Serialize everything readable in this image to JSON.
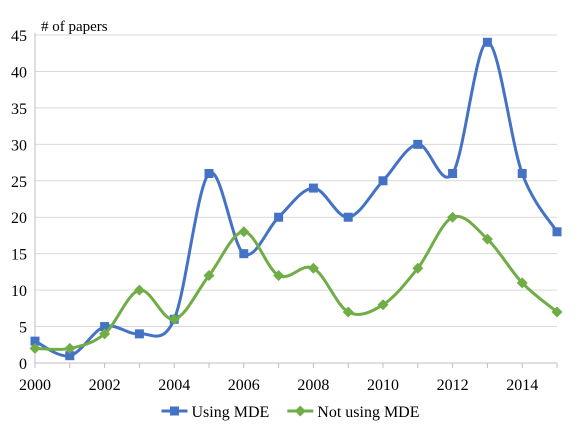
{
  "chart_data": {
    "type": "line",
    "title": "",
    "xlabel": "",
    "ylabel": "# of papers",
    "x": [
      2000,
      2001,
      2002,
      2003,
      2004,
      2005,
      2006,
      2007,
      2008,
      2009,
      2010,
      2011,
      2012,
      2013,
      2014,
      2015
    ],
    "xlim": [
      2000,
      2015
    ],
    "ylim": [
      0,
      45
    ],
    "xticks": [
      2000,
      2002,
      2004,
      2006,
      2008,
      2010,
      2012,
      2014
    ],
    "yticks": [
      0,
      5,
      10,
      15,
      20,
      25,
      30,
      35,
      40,
      45
    ],
    "smooth": true,
    "grid": "horizontal",
    "legend_position": "bottom",
    "series": [
      {
        "name": "Using MDE",
        "color": "#4472C4",
        "marker": "square",
        "values": [
          3,
          1,
          5,
          4,
          6,
          26,
          15,
          20,
          24,
          20,
          25,
          30,
          26,
          44,
          26,
          18
        ]
      },
      {
        "name": "Not using MDE",
        "color": "#70AD47",
        "marker": "diamond",
        "values": [
          2,
          2,
          4,
          10,
          6,
          12,
          18,
          12,
          13,
          7,
          8,
          13,
          20,
          17,
          11,
          7
        ]
      }
    ]
  }
}
